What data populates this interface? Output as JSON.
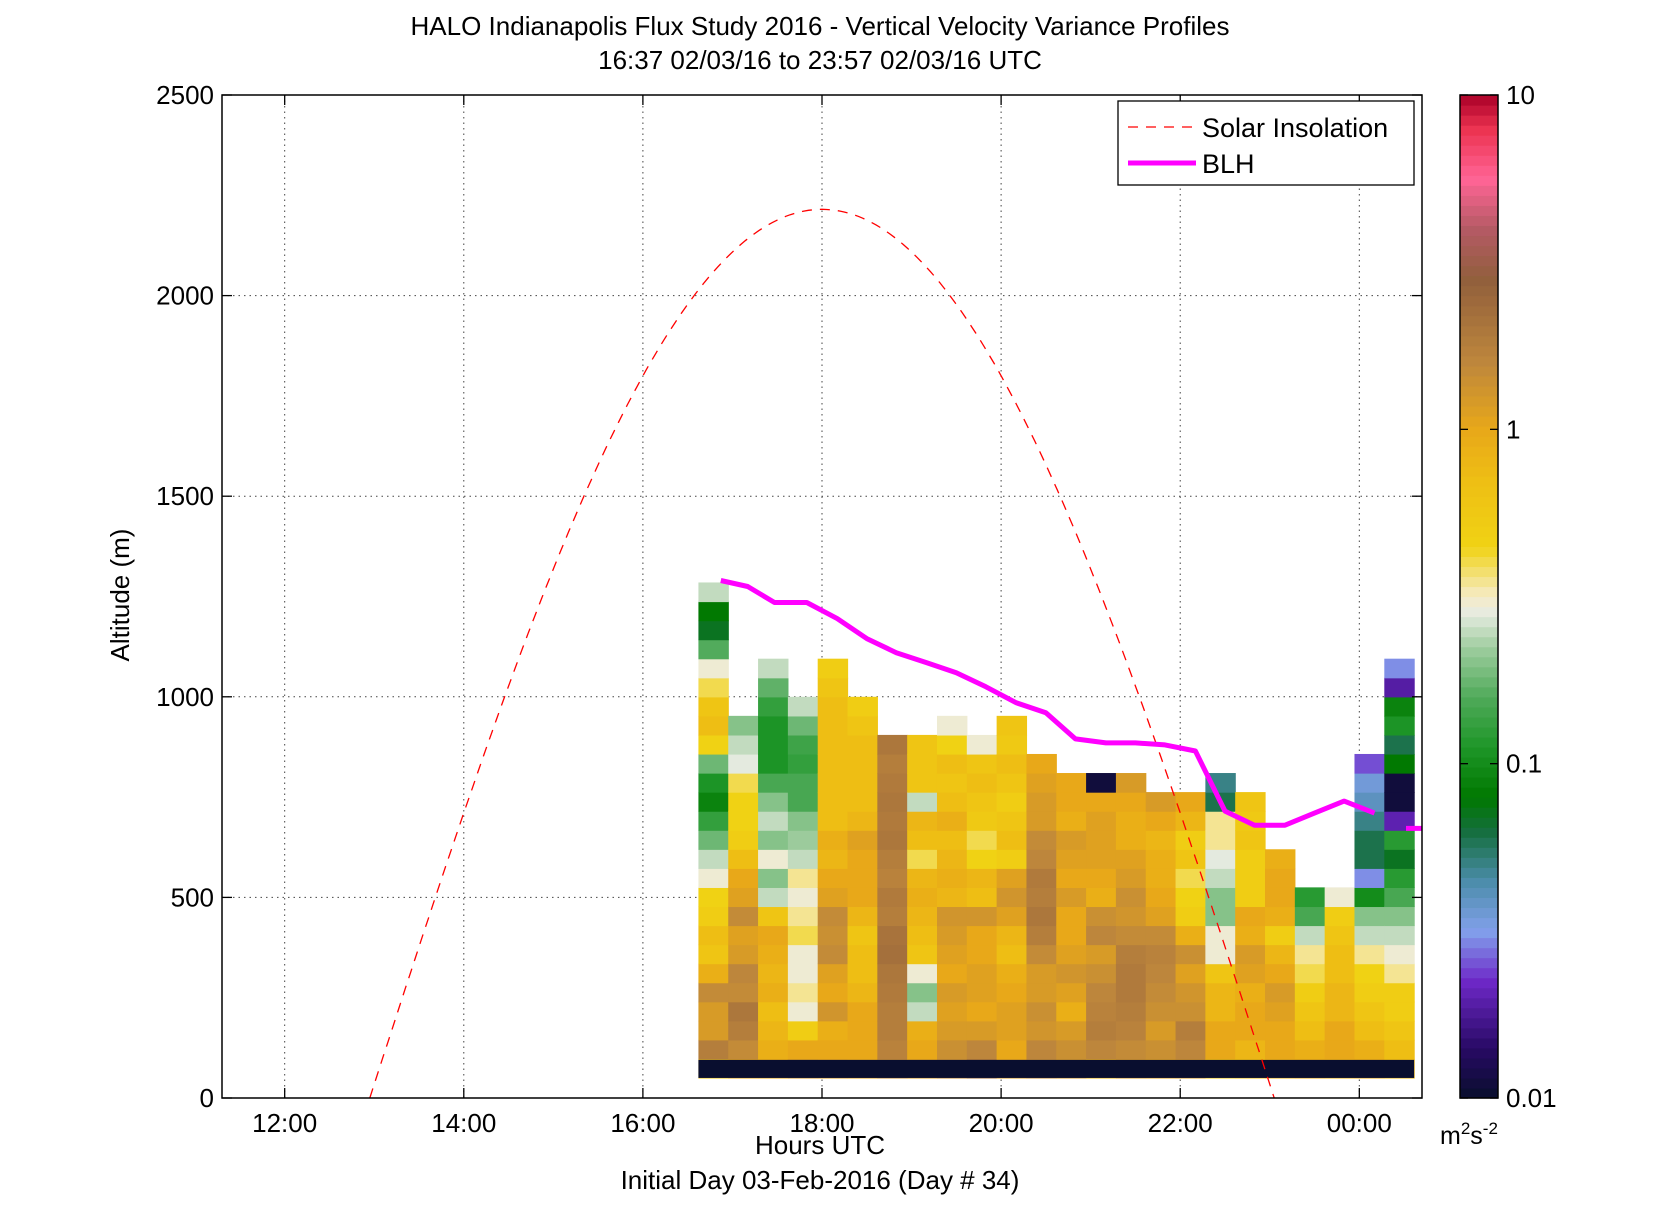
{
  "chart_data": {
    "type": "heatmap",
    "title": "HALO Indianapolis Flux Study 2016 - Vertical Velocity Variance Profiles",
    "subtitle": "16:37 02/03/16 to 23:57 02/03/16  UTC",
    "xlabel": "Hours UTC",
    "xlabel2": "Initial Day 03-Feb-2016 (Day # 34)",
    "ylabel": "Altitude (m)",
    "xlim": [
      11.3,
      24.7
    ],
    "ylim": [
      0,
      2500
    ],
    "xticks": [
      12,
      14,
      16,
      18,
      20,
      22,
      24
    ],
    "xtick_labels": [
      "12:00",
      "14:00",
      "16:00",
      "18:00",
      "20:00",
      "22:00",
      "00:00"
    ],
    "yticks": [
      0,
      500,
      1000,
      1500,
      2000,
      2500
    ],
    "ytick_labels": [
      "0",
      "500",
      "1000",
      "1500",
      "2000",
      "2500"
    ],
    "grid": true,
    "legend": {
      "placement": "top-right",
      "entries": [
        {
          "label": "Solar Insolation",
          "style": "dashed",
          "color": "#ff0000"
        },
        {
          "label": "BLH",
          "style": "solid",
          "color": "#ff00ff"
        }
      ]
    },
    "colorbar": {
      "scale": "log",
      "range": [
        0.01,
        10
      ],
      "tick_values": [
        0.01,
        0.1,
        1,
        10
      ],
      "tick_labels": [
        "0.01",
        "0.1",
        "1",
        "10"
      ],
      "unit_base": "m",
      "unit_sup1": "2",
      "unit_mid": "s",
      "unit_sup2": "-2"
    },
    "heatmap": {
      "x_start": 16.62,
      "column_width_hours": 0.333,
      "y_start": 50,
      "row_height_m": 47.5,
      "base_row_altitude": [
        50,
        95
      ],
      "base_row_value": 0.01,
      "columns": [
        [
          0.6,
          1.8,
          1.2,
          1.2,
          1.5,
          0.9,
          0.6,
          0.7,
          0.5,
          0.45,
          0.3,
          0.25,
          0.18,
          0.13,
          0.09,
          0.11,
          0.18,
          0.45,
          0.7,
          0.6,
          0.4,
          0.3,
          0.16,
          0.07,
          0.08,
          0.25
        ],
        [
          1.0,
          1.5,
          1.8,
          2.0,
          1.5,
          1.6,
          1.2,
          1.1,
          1.5,
          1.1,
          1.0,
          0.7,
          0.5,
          0.45,
          0.45,
          0.4,
          0.28,
          0.25,
          0.2
        ],
        [
          1.0,
          0.9,
          0.8,
          0.7,
          0.9,
          0.8,
          0.9,
          1.0,
          0.6,
          0.25,
          0.2,
          0.3,
          0.2,
          0.25,
          0.2,
          0.15,
          0.11,
          0.11,
          0.11,
          0.13,
          0.17,
          0.25
        ],
        [
          1.3,
          1.0,
          0.5,
          0.3,
          0.35,
          0.3,
          0.3,
          0.4,
          0.35,
          0.3,
          0.35,
          0.25,
          0.22,
          0.2,
          0.15,
          0.15,
          0.13,
          0.14,
          0.18,
          0.25
        ],
        [
          1.2,
          1.0,
          0.9,
          1.3,
          1.0,
          1.1,
          1.5,
          1.4,
          1.5,
          1.1,
          1.0,
          0.8,
          0.9,
          0.7,
          0.7,
          0.7,
          0.7,
          0.7,
          0.7,
          0.7,
          0.6,
          0.5
        ],
        [
          1.1,
          1.0,
          1.0,
          1.0,
          0.8,
          0.7,
          0.7,
          0.6,
          0.8,
          1.0,
          1.0,
          1.0,
          1.1,
          0.8,
          0.7,
          0.7,
          0.7,
          0.7,
          0.6,
          0.5
        ],
        [
          1.5,
          1.7,
          1.8,
          1.8,
          1.9,
          2.0,
          2.2,
          2.1,
          1.8,
          1.9,
          1.7,
          1.8,
          2.0,
          1.9,
          2.0,
          1.9,
          1.8,
          2.0
        ],
        [
          1.2,
          1.0,
          0.9,
          0.25,
          0.2,
          0.3,
          0.6,
          0.7,
          0.8,
          0.9,
          0.8,
          0.4,
          0.7,
          0.8,
          0.25,
          0.6,
          0.6,
          0.6
        ],
        [
          1.5,
          1.4,
          1.2,
          1.1,
          1.2,
          1.0,
          1.1,
          1.2,
          1.3,
          0.8,
          0.9,
          0.8,
          0.7,
          0.9,
          0.7,
          0.6,
          0.7,
          0.45,
          0.3
        ],
        [
          2.2,
          1.6,
          1.2,
          1.0,
          1.1,
          1.1,
          1.0,
          1.0,
          1.3,
          0.7,
          0.8,
          0.45,
          0.4,
          0.55,
          0.6,
          0.7,
          0.6,
          0.3
        ],
        [
          1.2,
          1.0,
          1.1,
          1.1,
          1.0,
          0.9,
          0.7,
          0.8,
          1.1,
          1.3,
          1.1,
          0.5,
          0.7,
          0.6,
          0.5,
          0.6,
          0.7,
          0.55,
          0.6
        ],
        [
          1.5,
          1.6,
          1.3,
          1.4,
          1.2,
          1.2,
          1.5,
          1.8,
          2.0,
          1.8,
          1.9,
          1.6,
          1.5,
          1.2,
          1.2,
          1.1,
          1.0
        ],
        [
          1.3,
          1.4,
          1.2,
          0.9,
          1.1,
          1.3,
          1.1,
          1.0,
          1.0,
          1.2,
          1.0,
          1.1,
          1.2,
          0.9,
          1.0,
          1.0
        ],
        [
          0.8,
          1.6,
          1.8,
          1.7,
          1.6,
          1.4,
          1.2,
          1.6,
          1.4,
          0.9,
          1.0,
          1.1,
          1.1,
          1.1,
          1.0,
          0.011
        ],
        [
          1.2,
          1.5,
          1.7,
          1.8,
          1.9,
          1.9,
          1.8,
          1.5,
          1.3,
          1.4,
          1.2,
          1.1,
          0.9,
          0.9,
          1.0,
          1.2
        ],
        [
          1.1,
          1.4,
          1.2,
          1.4,
          1.5,
          1.6,
          1.7,
          1.5,
          1.1,
          1.0,
          0.9,
          0.9,
          0.8,
          1.0,
          1.2
        ],
        [
          1.2,
          1.6,
          1.8,
          1.4,
          1.3,
          1.1,
          1.4,
          0.9,
          0.5,
          0.45,
          0.4,
          0.6,
          0.5,
          0.8,
          1.0
        ],
        [
          0.6,
          1.0,
          1.0,
          0.8,
          0.8,
          0.6,
          0.3,
          0.3,
          0.2,
          0.2,
          0.25,
          0.28,
          0.35,
          0.35,
          0.06,
          0.05
        ],
        [
          0.7,
          0.8,
          1.0,
          1.0,
          0.9,
          1.1,
          1.2,
          0.9,
          1.0,
          0.5,
          0.5,
          0.5,
          0.6,
          0.55,
          0.6
        ],
        [
          0.9,
          1.0,
          1.0,
          1.1,
          1.2,
          1.0,
          0.8,
          0.5,
          0.9,
          1.0,
          1.0,
          0.9
        ],
        [
          1.0,
          0.9,
          0.7,
          0.6,
          0.5,
          0.4,
          0.35,
          0.25,
          0.15,
          0.12
        ],
        [
          0.9,
          1.0,
          1.0,
          0.8,
          0.8,
          0.7,
          0.7,
          0.6,
          0.5,
          0.3
        ],
        [
          1.0,
          0.9,
          0.7,
          0.6,
          0.5,
          0.45,
          0.35,
          0.25,
          0.2,
          0.1,
          0.03,
          0.06,
          0.06,
          0.05,
          0.04,
          0.035,
          0.025
        ],
        [
          0.8,
          0.7,
          0.6,
          0.5,
          0.5,
          0.35,
          0.3,
          0.25,
          0.2,
          0.15,
          0.12,
          0.07,
          0.12,
          0.02,
          0.011,
          0.011,
          0.08,
          0.06,
          0.11,
          0.09,
          0.019,
          0.03
        ]
      ]
    },
    "solar_insolation": {
      "x_start": 12.95,
      "x_end": 23.05,
      "peak_x": 18.0,
      "peak_y": 2215
    },
    "blh": {
      "x": [
        16.87,
        17.17,
        17.47,
        17.83,
        18.17,
        18.5,
        18.83,
        19.17,
        19.5,
        19.83,
        20.17,
        20.5,
        20.83,
        21.17,
        21.5,
        21.83,
        22.17,
        22.5,
        22.83,
        23.17,
        23.5,
        23.83,
        24.17
      ],
      "y": [
        1290,
        1275,
        1235,
        1235,
        1195,
        1145,
        1110,
        1085,
        1060,
        1025,
        985,
        960,
        895,
        885,
        885,
        880,
        865,
        715,
        680,
        680,
        710,
        740,
        710
      ],
      "extra_point": {
        "x": 24.7,
        "y": 672
      }
    }
  }
}
